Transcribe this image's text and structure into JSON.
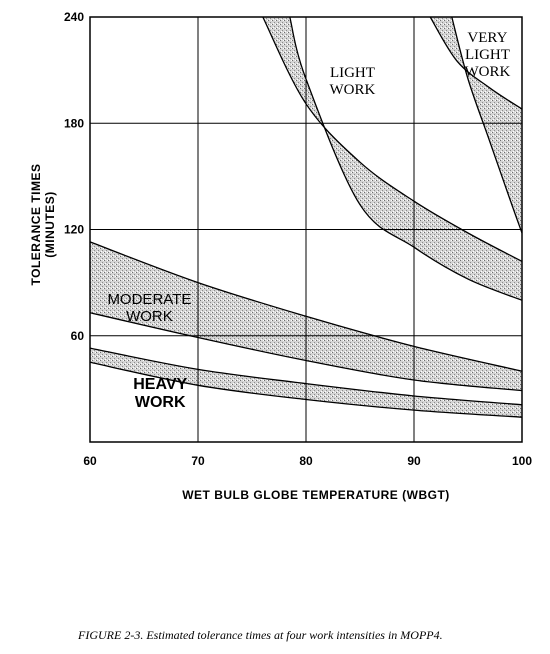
{
  "chart_data": {
    "type": "area",
    "xlabel": "WET BULB GLOBE TEMPERATURE (WBGT)",
    "ylabel": "TOLERANCE TIMES (MINUTES)",
    "ylabel_lines": [
      "TOLERANCE TIMES",
      "(MINUTES)"
    ],
    "xlim": [
      60,
      100
    ],
    "ylim": [
      0,
      240
    ],
    "xticks": [
      "60",
      "70",
      "80",
      "90",
      "100"
    ],
    "yticks": [
      "60",
      "120",
      "180",
      "240"
    ],
    "grid": true,
    "bands": [
      {
        "name": "HEAVY WORK",
        "label_lines": [
          "HEAVY",
          "WORK"
        ],
        "upper": [
          [
            60,
            53
          ],
          [
            70,
            41
          ],
          [
            80,
            33
          ],
          [
            90,
            26
          ],
          [
            100,
            21
          ]
        ],
        "lower": [
          [
            60,
            45
          ],
          [
            70,
            32
          ],
          [
            80,
            24
          ],
          [
            90,
            18
          ],
          [
            100,
            14
          ]
        ]
      },
      {
        "name": "MODERATE WORK",
        "label_lines": [
          "MODERATE",
          "WORK"
        ],
        "upper": [
          [
            60,
            113
          ],
          [
            70,
            90
          ],
          [
            80,
            71
          ],
          [
            90,
            54
          ],
          [
            100,
            40
          ]
        ],
        "lower": [
          [
            60,
            73
          ],
          [
            70,
            59
          ],
          [
            80,
            46
          ],
          [
            90,
            35
          ],
          [
            100,
            29
          ]
        ]
      },
      {
        "name": "LIGHT WORK",
        "label_lines": [
          "LIGHT",
          "WORK"
        ],
        "upper": [
          [
            76,
            240
          ],
          [
            80,
            191
          ],
          [
            85,
            158
          ],
          [
            90,
            136
          ],
          [
            95,
            118
          ],
          [
            100,
            102
          ]
        ],
        "lower": [
          [
            78.5,
            240
          ],
          [
            80,
            205
          ],
          [
            85,
            134
          ],
          [
            90,
            110
          ],
          [
            95,
            92
          ],
          [
            100,
            80
          ]
        ]
      },
      {
        "name": "VERY LIGHT WORK",
        "label_lines": [
          "VERY",
          "LIGHT",
          "WORK"
        ],
        "upper": [
          [
            91.5,
            240
          ],
          [
            94,
            215
          ],
          [
            97,
            200
          ],
          [
            100,
            188
          ]
        ],
        "lower": [
          [
            93.5,
            240
          ],
          [
            95,
            205
          ],
          [
            97,
            170
          ],
          [
            99,
            135
          ],
          [
            100,
            118
          ]
        ]
      }
    ]
  },
  "caption": "FIGURE 2-3. Estimated tolerance times at four work intensities in MOPP4."
}
